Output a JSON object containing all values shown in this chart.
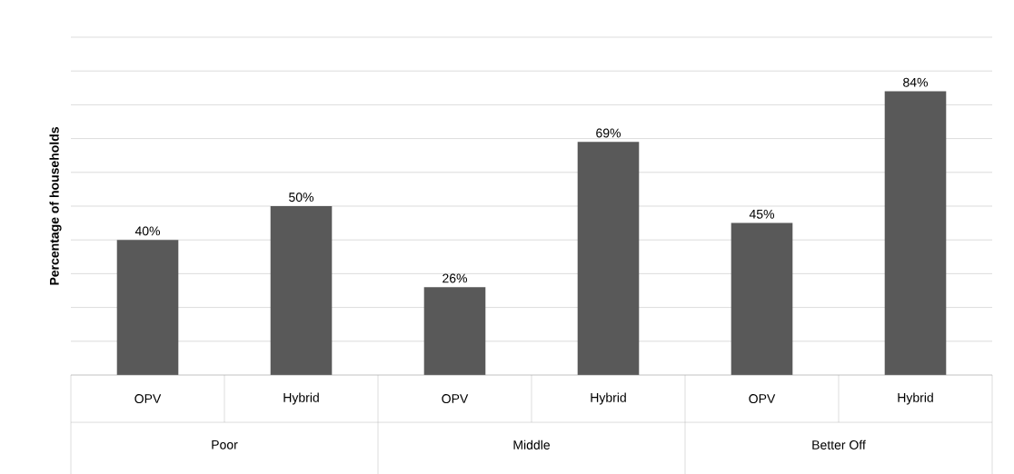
{
  "chart_data": {
    "type": "bar",
    "ylabel": "Percentage of households",
    "categories": [
      "OPV",
      "Hybrid",
      "OPV",
      "Hybrid",
      "OPV",
      "Hybrid"
    ],
    "values": [
      40,
      50,
      26,
      69,
      45,
      84
    ],
    "value_labels": [
      "40%",
      "50%",
      "26%",
      "69%",
      "45%",
      "84%"
    ],
    "color": "#595959",
    "annotations": [
      "Poor",
      "Middle",
      "Better Off"
    ],
    "ylim": [
      0,
      100
    ],
    "yticks": [
      {
        "value": 0,
        "label": null
      },
      {
        "value": 10,
        "label": null
      },
      {
        "value": 20,
        "label": null
      },
      {
        "value": 30,
        "label": null
      },
      {
        "value": 40,
        "label": null
      },
      {
        "value": 50,
        "label": null
      },
      {
        "value": 60,
        "label": null
      },
      {
        "value": 70,
        "label": null
      },
      {
        "value": 80,
        "label": null
      },
      {
        "value": 90,
        "label": null
      },
      {
        "value": 100,
        "label": null
      }
    ],
    "grid": "y"
  }
}
